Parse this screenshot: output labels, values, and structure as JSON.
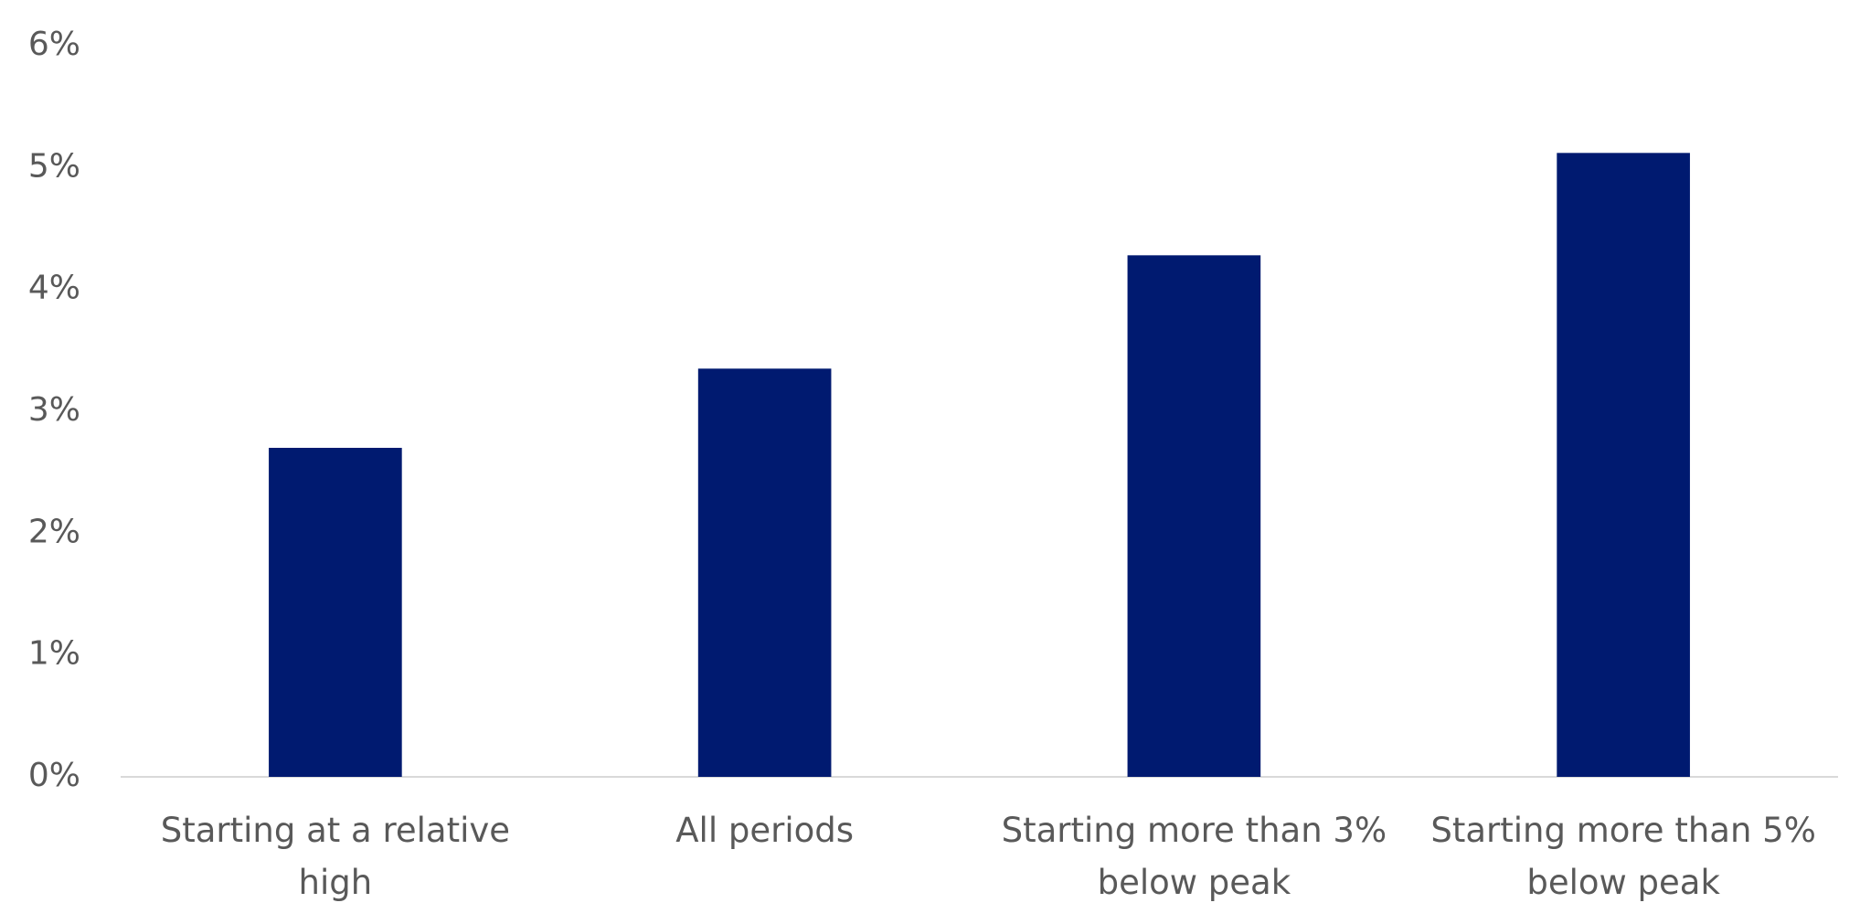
{
  "chart_data": {
    "type": "bar",
    "categories": [
      "Starting at a relative high",
      "All periods",
      "Starting more than 3% below peak",
      "Starting more than 5% below peak"
    ],
    "values": [
      2.7,
      3.35,
      4.28,
      5.12
    ],
    "color": "#001a70",
    "ylim": [
      0,
      6
    ],
    "yticks": [
      {
        "value": 0,
        "label": "0%"
      },
      {
        "value": 1,
        "label": "1%"
      },
      {
        "value": 2,
        "label": "2%"
      },
      {
        "value": 3,
        "label": "3%"
      },
      {
        "value": 4,
        "label": "4%"
      },
      {
        "value": 5,
        "label": "5%"
      },
      {
        "value": 6,
        "label": "6%"
      }
    ],
    "grid": false
  }
}
